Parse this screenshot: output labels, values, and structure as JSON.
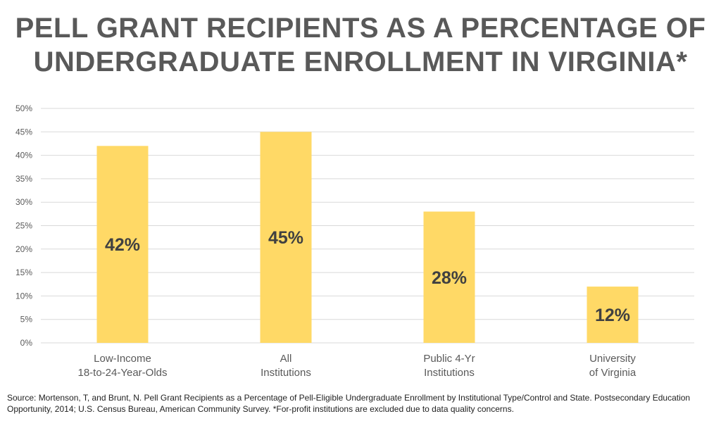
{
  "title": {
    "line1": "PELL GRANT RECIPIENTS AS A PERCENTAGE OF",
    "line2": "UNDERGRADUATE ENROLLMENT IN VIRGINIA*"
  },
  "chart_data": {
    "type": "bar",
    "title": "PELL GRANT RECIPIENTS AS A PERCENTAGE OF UNDERGRADUATE ENROLLMENT IN VIRGINIA*",
    "categories": [
      [
        "Low-Income",
        "18-to-24-Year-Olds"
      ],
      [
        "All",
        "Institutions"
      ],
      [
        "Public 4-Yr",
        "Institutions"
      ],
      [
        "University",
        "of Virginia"
      ]
    ],
    "values": [
      42,
      45,
      28,
      12
    ],
    "data_labels": [
      "42%",
      "45%",
      "28%",
      "12%"
    ],
    "ylim": [
      0,
      50
    ],
    "yticks": [
      0,
      5,
      10,
      15,
      20,
      25,
      30,
      35,
      40,
      45,
      50
    ],
    "ytick_labels": [
      "0%",
      "5%",
      "10%",
      "15%",
      "20%",
      "25%",
      "30%",
      "35%",
      "40%",
      "45%",
      "50%"
    ],
    "xlabel": "",
    "ylabel": "",
    "grid": true,
    "legend": "none",
    "colors": {
      "bar": "#FFD966",
      "grid": "#d9d9d9",
      "axis_text": "#595959",
      "label_text": "#404040"
    }
  },
  "source": "Source: Mortenson, T, and Brunt, N. Pell Grant Recipients as a Percentage of Pell-Eligible Undergraduate Enrollment by Institutional Type/Control and State. Postsecondary Education Opportunity, 2014; U.S. Census Bureau, American Community Survey. *For-profit institutions are excluded due to data quality concerns."
}
